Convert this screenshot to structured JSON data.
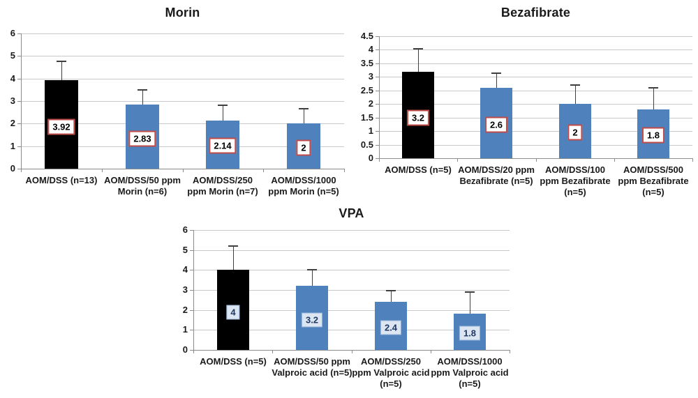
{
  "chart_data": [
    {
      "type": "bar",
      "title": "Morin",
      "categories": [
        "AOM/DSS (n=13)",
        "AOM/DSS/50 ppm\nMorin (n=6)",
        "AOM/DSS/250\nppm Morin (n=7)",
        "AOM/DSS/1000\nppm Morin (n=5)"
      ],
      "values": [
        3.92,
        2.83,
        2.14,
        2
      ],
      "value_labels": [
        "3.92",
        "2.83",
        "2.14",
        "2"
      ],
      "error_bar_tops": [
        4.75,
        3.5,
        2.8,
        2.65
      ],
      "bar_colors": [
        "#000000",
        "#4F81BD",
        "#4F81BD",
        "#4F81BD"
      ],
      "label_box_style": "red",
      "ylim": [
        0,
        6
      ],
      "ytick_step": 1,
      "grid": true,
      "legend": "none"
    },
    {
      "type": "bar",
      "title": "Bezafibrate",
      "categories": [
        "AOM/DSS (n=5)",
        "AOM/DSS/20 ppm\nBezafibrate (n=5)",
        "AOM/DSS/100\nppm Bezafibrate\n(n=5)",
        "AOM/DSS/500\nppm Bezafibrate\n(n=5)"
      ],
      "values": [
        3.2,
        2.6,
        2,
        1.8
      ],
      "value_labels": [
        "3.2",
        "2.6",
        "2",
        "1.8"
      ],
      "error_bar_tops": [
        4.05,
        3.15,
        2.7,
        2.6
      ],
      "bar_colors": [
        "#000000",
        "#4F81BD",
        "#4F81BD",
        "#4F81BD"
      ],
      "label_box_style": "red",
      "ylim": [
        0,
        4.5
      ],
      "ytick_step": 0.5,
      "grid": true,
      "legend": "none"
    },
    {
      "type": "bar",
      "title": "VPA",
      "categories": [
        "AOM/DSS (n=5)",
        "AOM/DSS/50 ppm\nValproic acid (n=5)",
        "AOM/DSS/250\nppm Valproic acid\n(n=5)",
        "AOM/DSS/1000\nppm Valproic acid\n(n=5)"
      ],
      "values": [
        4,
        3.2,
        2.4,
        1.8
      ],
      "value_labels": [
        "4",
        "3.2",
        "2.4",
        "1.8"
      ],
      "error_bar_tops": [
        5.2,
        4,
        2.95,
        2.9
      ],
      "bar_colors": [
        "#000000",
        "#4F81BD",
        "#4F81BD",
        "#4F81BD"
      ],
      "label_box_style": "blue",
      "ylim": [
        0,
        6
      ],
      "ytick_step": 1,
      "grid": true,
      "legend": "none"
    }
  ],
  "styles": {
    "bar_blue": "#4F81BD",
    "bar_black": "#000000",
    "red_label_bg": "#FFFFFF",
    "red_label_border": "#BE4B48",
    "red_label_text": "#000000",
    "blue_label_bg": "#DCE6F2",
    "blue_label_border": "#95B3D7",
    "blue_label_text": "#1F3864",
    "gridline_color": "#C9C9C9",
    "axis_color": "#8C8C8C",
    "error_bar_color": "#3F3F3F",
    "text_color": "#1A1A1A"
  }
}
